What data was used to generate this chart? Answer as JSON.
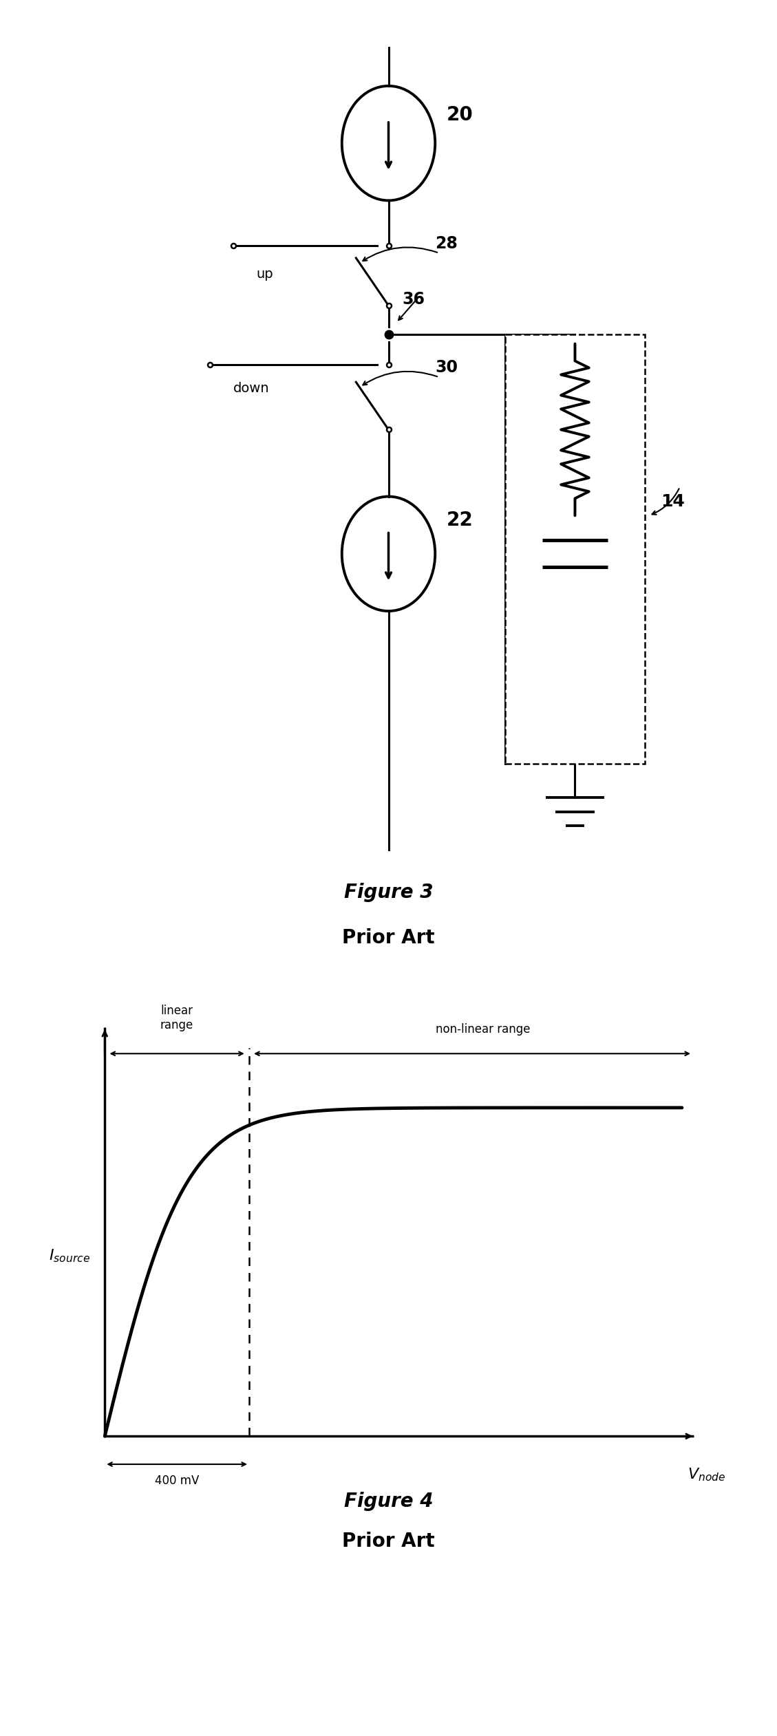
{
  "fig_width": 11.29,
  "fig_height": 25.23,
  "bg_color": "#ffffff",
  "fig3": {
    "title_line1": "Figure 3",
    "title_line2": "Prior Art",
    "labels": {
      "cs_up": "20",
      "cs_down": "22",
      "sw_up_label": "28",
      "node_label": "36",
      "sw_down_label": "30",
      "filter_label": "14",
      "up_text": "up",
      "down_text": "down"
    }
  },
  "fig4": {
    "title_line1": "Figure 4",
    "title_line2": "Prior Art",
    "xlabel": "V_{node}",
    "ylabel": "I_{source}",
    "linear_range_label": "linear\nrange",
    "nonlinear_range_label": "non-linear range",
    "mv_label": "400 mV"
  }
}
